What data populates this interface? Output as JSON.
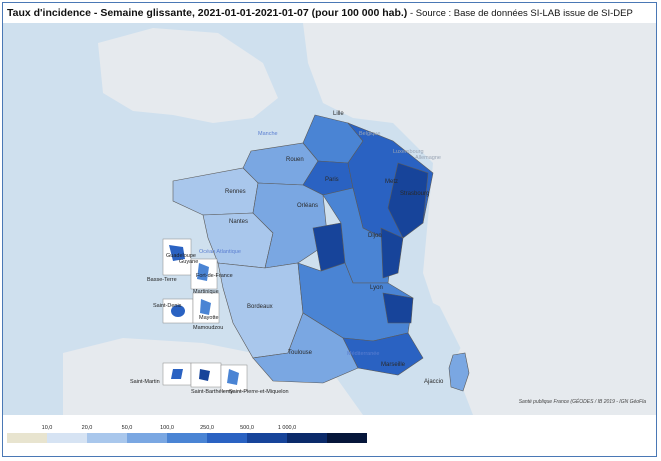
{
  "title": "Taux d'incidence - Semaine glissante, 2021-01-01-2021-01-07 (pour 100 000 hab.)",
  "source": " - Source : Base de données SI-LAB issue de SI-DEP",
  "credit": "Santé publique France (GÉODES / IB 2019 - IGN GéoFla",
  "colors": {
    "sea": "#cfe0ee",
    "land": "#e6eaee",
    "border": "#5a5a5a"
  },
  "cities": [
    "Lille",
    "Rouen",
    "Paris",
    "Metz",
    "Strasbourg",
    "Rennes",
    "Orléans",
    "Nantes",
    "Dijon",
    "Lyon",
    "Bordeaux",
    "Toulouse",
    "Marseille",
    "Ajaccio"
  ],
  "seas": [
    "Manche",
    "Océan Atlantique",
    "Méditerranée"
  ],
  "countries": [
    "Belgique",
    "Luxembourg",
    "Allemagne"
  ],
  "overseas": [
    "Guadeloupe",
    "Martinique",
    "Guyane",
    "Mayotte",
    "Saint-Denis",
    "Basse-Terre",
    "Fort-de-France",
    "Mamoudzou",
    "Saint-Martin",
    "Saint-Barthélemy",
    "Saint-Pierre-et-Miquelon"
  ],
  "legend": {
    "thresholds": [
      "10,0",
      "20,0",
      "50,0",
      "100,0",
      "250,0",
      "500,0",
      "1 000,0"
    ],
    "colors": [
      "#e8e4cf",
      "#d6e3f3",
      "#a9c7ec",
      "#7aa7e2",
      "#4a84d4",
      "#2a62c2",
      "#17449a",
      "#0b2a6a",
      "#06163a"
    ]
  }
}
